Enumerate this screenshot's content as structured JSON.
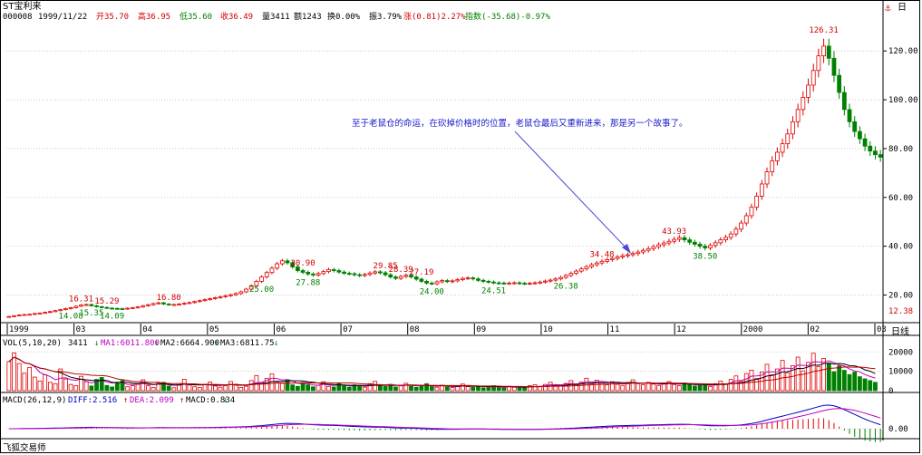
{
  "header": {
    "title": "ST宝利来",
    "code": "000008",
    "date": "1999/11/22",
    "open": "开35.70",
    "high": "高36.95",
    "low": "低35.60",
    "close": "收36.49",
    "volume": "量3411",
    "amount": "额1243",
    "turnover": "换0.00%",
    "amplitude": "振3.79%",
    "change": "涨(0.81)2.27%",
    "index": "指数(-35.68)-0.97%"
  },
  "toolbar": {
    "corner_label": "日"
  },
  "annotation": "至于老鼠仓的命运，在砍掉价格时的位置，老鼠仓最后又重新进来，那是另一个故事了。",
  "price_labels": {
    "min_right": "12.38",
    "period": "日线"
  },
  "vol_header": {
    "label": "VOL(5,10,20)",
    "vol": "3411",
    "ma1": "MA1:6011.800",
    "ma2": "MA2:6664.900",
    "ma3": "MA3:6811.75"
  },
  "macd_header": {
    "label": "MACD(26,12,9)",
    "diff": "DIFF:2.516",
    "dea": "DEA:2.099",
    "macd": "MACD:0.834"
  },
  "footer": "飞狐交易师",
  "colors": {
    "up": "#e00000",
    "down": "#008000",
    "grid": "#c0c0c0",
    "annot": "#1a1acc"
  },
  "chart_data": [
    {
      "type": "candlestick",
      "title": "ST宝利来",
      "y_ticks": [
        "120.00",
        "100.00",
        "80.00",
        "60.00",
        "40.00",
        "20.00"
      ],
      "y_tick_values": [
        120,
        100,
        80,
        60,
        40,
        20
      ],
      "ylim": [
        12.38,
        129
      ],
      "x_ticks": [
        "1999",
        "03",
        "04",
        "05",
        "06",
        "07",
        "08",
        "09",
        "10",
        "11",
        "12",
        "2000",
        "02",
        "03"
      ],
      "annotated_points": [
        {
          "label": "16.31",
          "value": 16.31,
          "kind": "high"
        },
        {
          "label": "15.29",
          "value": 15.29,
          "kind": "high"
        },
        {
          "label": "14.09",
          "value": 14.09,
          "kind": "low"
        },
        {
          "label": "14.08",
          "value": 14.08,
          "kind": "low"
        },
        {
          "label": "16.80",
          "value": 16.8,
          "kind": "high"
        },
        {
          "label": "15.35",
          "value": 15.35,
          "kind": "low"
        },
        {
          "label": "34.48",
          "value": 34.48,
          "kind": "high"
        },
        {
          "label": "27.88",
          "value": 27.88,
          "kind": "low"
        },
        {
          "label": "30.90",
          "value": 30.9,
          "kind": "high"
        },
        {
          "label": "26.38",
          "value": 26.38,
          "kind": "low"
        },
        {
          "label": "29.85",
          "value": 29.85,
          "kind": "high"
        },
        {
          "label": "28.39",
          "value": 28.39,
          "kind": "high"
        },
        {
          "label": "24.00",
          "value": 24.0,
          "kind": "low"
        },
        {
          "label": "25.00",
          "value": 25.0,
          "kind": "low"
        },
        {
          "label": "27.19",
          "value": 27.19,
          "kind": "high"
        },
        {
          "label": "24.51",
          "value": 24.51,
          "kind": "low"
        },
        {
          "label": "43.93",
          "value": 43.93,
          "kind": "high"
        },
        {
          "label": "38.50",
          "value": 38.5,
          "kind": "low"
        },
        {
          "label": "126.31",
          "value": 126.31,
          "kind": "high"
        }
      ],
      "close_series": [
        11.2,
        11.5,
        11.8,
        12.0,
        12.1,
        12.4,
        12.6,
        12.9,
        13.2,
        13.6,
        14.0,
        14.4,
        14.8,
        15.4,
        15.9,
        16.1,
        15.6,
        15.2,
        14.9,
        14.6,
        14.5,
        14.4,
        14.3,
        14.6,
        14.8,
        15.1,
        15.6,
        16.0,
        16.5,
        16.8,
        16.3,
        16.0,
        16.1,
        16.3,
        16.6,
        16.9,
        17.3,
        17.7,
        18.1,
        18.5,
        18.9,
        19.3,
        19.7,
        20.1,
        20.6,
        21.3,
        22.4,
        23.8,
        25.6,
        27.4,
        29.2,
        31.0,
        32.8,
        34.0,
        33.2,
        31.5,
        30.0,
        29.3,
        28.6,
        28.2,
        28.8,
        29.6,
        30.4,
        30.0,
        29.4,
        28.9,
        28.7,
        28.3,
        28.0,
        28.4,
        29.0,
        29.5,
        29.1,
        28.3,
        27.4,
        26.8,
        27.6,
        28.1,
        27.4,
        26.5,
        25.6,
        24.9,
        24.6,
        25.4,
        25.9,
        25.5,
        25.8,
        26.3,
        26.8,
        27.0,
        26.6,
        26.0,
        25.6,
        25.3,
        25.0,
        24.9,
        24.8,
        24.9,
        25.0,
        24.8,
        24.7,
        24.8,
        25.0,
        25.3,
        25.7,
        26.1,
        26.6,
        27.2,
        28.0,
        28.9,
        29.8,
        30.7,
        31.6,
        32.4,
        33.1,
        33.8,
        34.5,
        35.0,
        35.6,
        36.1,
        36.5,
        37.0,
        37.6,
        38.3,
        39.0,
        39.8,
        40.6,
        41.3,
        42.0,
        42.8,
        43.5,
        42.6,
        41.6,
        40.8,
        40.0,
        39.3,
        40.3,
        41.4,
        42.6,
        43.6,
        45.0,
        47.0,
        49.5,
        52.5,
        56.0,
        60.5,
        65.5,
        70.5,
        75.0,
        78.5,
        82.0,
        86.0,
        91.0,
        96.0,
        101.0,
        106.0,
        112.0,
        118.0,
        122.0,
        117.0,
        110.0,
        103.0,
        96.0,
        91.0,
        87.0,
        84.0,
        81.0,
        79.0,
        77.5,
        76.5
      ]
    },
    {
      "type": "bar",
      "title": "VOL(5,10,20)",
      "y_ticks": [
        "20000",
        "10000",
        "0"
      ],
      "y_tick_values": [
        20000,
        10000,
        0
      ],
      "ylim": [
        0,
        22000
      ],
      "latest": 3411,
      "ma1": 6011.8,
      "ma2": 6664.9,
      "ma3": 6811.75,
      "bars": [
        15000,
        19500,
        14000,
        9000,
        12000,
        7000,
        5000,
        8200,
        4300,
        3600,
        11200,
        6000,
        3200,
        2600,
        7400,
        4600,
        2400,
        5800,
        6800,
        2700,
        1900,
        4300,
        5200,
        2000,
        2600,
        3300,
        5600,
        2500,
        1700,
        3900,
        4300,
        2300,
        1500,
        2800,
        5900,
        2900,
        2000,
        1600,
        3300,
        4500,
        2400,
        1800,
        2600,
        4700,
        3300,
        1700,
        2300,
        5200,
        7800,
        4300,
        6400,
        8600,
        4200,
        3800,
        5600,
        3000,
        2200,
        4200,
        3000,
        2000,
        2700,
        4600,
        2200,
        1900,
        3600,
        2400,
        1700,
        3000,
        2600,
        1800,
        3600,
        4800,
        2600,
        2200,
        3100,
        1900,
        2700,
        3800,
        2300,
        1700,
        2600,
        3600,
        2100,
        1800,
        2800,
        2000,
        1600,
        2400,
        3400,
        2100,
        1700,
        2300,
        1500,
        1900,
        2600,
        1700,
        1500,
        2200,
        1800,
        1400,
        1800,
        2600,
        3000,
        2100,
        3200,
        4300,
        2800,
        2500,
        3700,
        5200,
        3100,
        4400,
        6400,
        3600,
        5400,
        4000,
        3000,
        4600,
        3300,
        2700,
        4100,
        5600,
        3600,
        3000,
        4300,
        3400,
        2700,
        3500,
        4700,
        3200,
        2600,
        3900,
        3100,
        2400,
        3500,
        2800,
        2200,
        3600,
        4900,
        3400,
        5800,
        7600,
        4700,
        8800,
        10600,
        6300,
        9600,
        13600,
        8200,
        11200,
        15600,
        9300,
        12900,
        17300,
        10200,
        14600,
        19300,
        12500,
        16600,
        14200,
        9800,
        12800,
        10500,
        8300,
        9600,
        7200,
        6100,
        5200,
        4300
      ]
    },
    {
      "type": "line",
      "title": "MACD(26,12,9)",
      "y_ticks": [
        "0.00"
      ],
      "y_tick_values": [
        0
      ],
      "diff_latest": 2.516,
      "dea_latest": 2.099,
      "macd_latest": 0.834
    }
  ]
}
